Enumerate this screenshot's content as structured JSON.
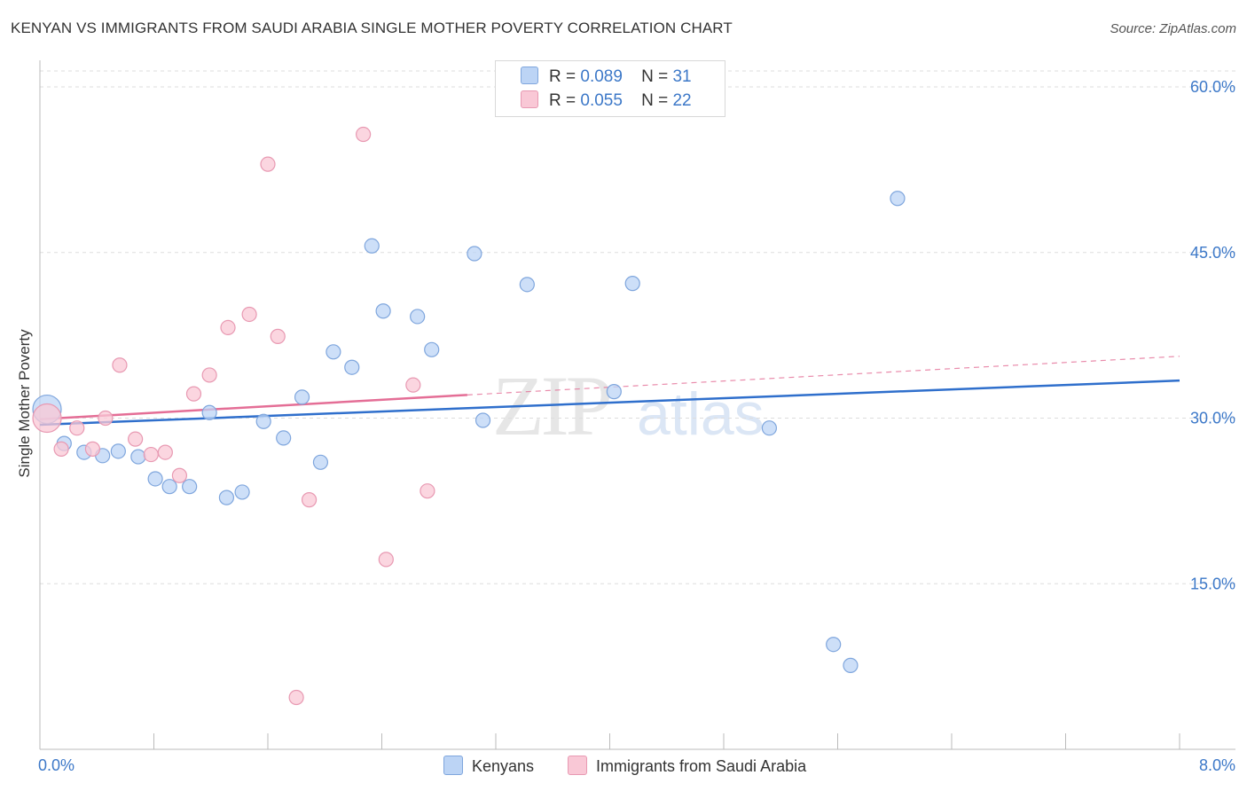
{
  "header": {
    "title": "KENYAN VS IMMIGRANTS FROM SAUDI ARABIA SINGLE MOTHER POVERTY CORRELATION CHART",
    "source": "Source: ZipAtlas.com"
  },
  "watermark": {
    "zip": "ZIP",
    "atlas": "atlas"
  },
  "colors": {
    "blue_fill": "#bcd4f5",
    "blue_stroke": "#7fa6dd",
    "blue_line": "#2f6fcc",
    "pink_fill": "#f9c8d6",
    "pink_stroke": "#e899b2",
    "pink_line": "#e46e96",
    "axis_label": "#3c78c8",
    "grid": "#dddddd"
  },
  "legend": {
    "series": [
      {
        "r_label": "R =",
        "r_value": "0.089",
        "n_label": "N =",
        "n_value": "31"
      },
      {
        "r_label": "R =",
        "r_value": "0.055",
        "n_label": "N =",
        "n_value": "22"
      }
    ],
    "bottom": [
      "Kenyans",
      "Immigrants from Saudi Arabia"
    ]
  },
  "chart_data": {
    "type": "scatter",
    "title": "KENYAN VS IMMIGRANTS FROM SAUDI ARABIA SINGLE MOTHER POVERTY CORRELATION CHART",
    "xlabel": "",
    "ylabel": "Single Mother Poverty",
    "xlim": [
      0,
      8
    ],
    "ylim": [
      0,
      60
    ],
    "x_tick_labels": [
      "0.0%",
      "8.0%"
    ],
    "y_ticks": [
      15,
      30,
      45,
      60
    ],
    "y_tick_labels": [
      "15.0%",
      "30.0%",
      "45.0%",
      "60.0%"
    ],
    "series": [
      {
        "name": "Kenyans",
        "r": 0.089,
        "n": 31,
        "trend": {
          "x": [
            0,
            8
          ],
          "y": [
            29.4,
            33.4
          ]
        },
        "points": [
          {
            "x": 0.05,
            "y": 30.8,
            "big": true
          },
          {
            "x": 0.17,
            "y": 27.7
          },
          {
            "x": 0.31,
            "y": 26.9
          },
          {
            "x": 0.44,
            "y": 26.6
          },
          {
            "x": 0.55,
            "y": 27.0
          },
          {
            "x": 0.69,
            "y": 26.5
          },
          {
            "x": 0.81,
            "y": 24.5
          },
          {
            "x": 0.91,
            "y": 23.8
          },
          {
            "x": 1.05,
            "y": 23.8
          },
          {
            "x": 1.19,
            "y": 30.5
          },
          {
            "x": 1.31,
            "y": 22.8
          },
          {
            "x": 1.42,
            "y": 23.3
          },
          {
            "x": 1.57,
            "y": 29.7
          },
          {
            "x": 1.71,
            "y": 28.2
          },
          {
            "x": 1.84,
            "y": 31.9
          },
          {
            "x": 1.97,
            "y": 26.0
          },
          {
            "x": 2.06,
            "y": 36.0
          },
          {
            "x": 2.19,
            "y": 34.6
          },
          {
            "x": 2.33,
            "y": 45.6
          },
          {
            "x": 2.41,
            "y": 39.7
          },
          {
            "x": 2.65,
            "y": 39.2
          },
          {
            "x": 2.75,
            "y": 36.2
          },
          {
            "x": 3.05,
            "y": 44.9
          },
          {
            "x": 3.11,
            "y": 29.8
          },
          {
            "x": 3.42,
            "y": 42.1
          },
          {
            "x": 4.03,
            "y": 32.4
          },
          {
            "x": 4.16,
            "y": 42.2
          },
          {
            "x": 5.12,
            "y": 29.1
          },
          {
            "x": 5.57,
            "y": 9.5
          },
          {
            "x": 5.69,
            "y": 7.6
          },
          {
            "x": 6.02,
            "y": 49.9
          }
        ]
      },
      {
        "name": "Immigrants from Saudi Arabia",
        "r": 0.055,
        "n": 22,
        "trend": {
          "x": [
            0,
            3.0
          ],
          "y": [
            29.9,
            32.1
          ]
        },
        "trend_dashed": {
          "x": [
            3.0,
            8
          ],
          "y": [
            32.1,
            35.6
          ]
        },
        "points": [
          {
            "x": 0.05,
            "y": 30.0,
            "big": true
          },
          {
            "x": 0.15,
            "y": 27.2
          },
          {
            "x": 0.26,
            "y": 29.1
          },
          {
            "x": 0.37,
            "y": 27.2
          },
          {
            "x": 0.46,
            "y": 30.0
          },
          {
            "x": 0.56,
            "y": 34.8
          },
          {
            "x": 0.67,
            "y": 28.1
          },
          {
            "x": 0.78,
            "y": 26.7
          },
          {
            "x": 0.88,
            "y": 26.9
          },
          {
            "x": 0.98,
            "y": 24.8
          },
          {
            "x": 1.08,
            "y": 32.2
          },
          {
            "x": 1.19,
            "y": 33.9
          },
          {
            "x": 1.32,
            "y": 38.2
          },
          {
            "x": 1.47,
            "y": 39.4
          },
          {
            "x": 1.6,
            "y": 53.0
          },
          {
            "x": 1.67,
            "y": 37.4
          },
          {
            "x": 1.8,
            "y": 4.7
          },
          {
            "x": 1.89,
            "y": 22.6
          },
          {
            "x": 2.27,
            "y": 55.7
          },
          {
            "x": 2.43,
            "y": 17.2
          },
          {
            "x": 2.62,
            "y": 33.0
          },
          {
            "x": 2.72,
            "y": 23.4
          }
        ]
      }
    ]
  }
}
